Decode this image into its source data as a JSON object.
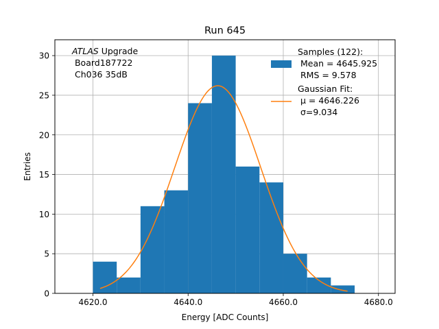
{
  "chart_data": {
    "type": "bar",
    "title": "Run 645",
    "xlabel": "Energy [ADC Counts]",
    "ylabel": "Entries",
    "xlim": [
      4612.0,
      4683.5
    ],
    "ylim": [
      0,
      32
    ],
    "grid": true,
    "x_ticks": [
      4620.0,
      4640.0,
      4660.0,
      4680.0
    ],
    "x_tick_labels": [
      "4620.0",
      "4640.0",
      "4660.0",
      "4680.0"
    ],
    "y_ticks": [
      0,
      5,
      10,
      15,
      20,
      25,
      30
    ],
    "y_tick_labels": [
      "0",
      "5",
      "10",
      "15",
      "20",
      "25",
      "30"
    ],
    "histogram": {
      "bin_edges": [
        4620,
        4625,
        4630,
        4635,
        4640,
        4645,
        4650,
        4655,
        4660,
        4665,
        4670,
        4675
      ],
      "counts": [
        4,
        2,
        11,
        13,
        24,
        30,
        16,
        14,
        5,
        2,
        1
      ],
      "color": "#1f77b4"
    },
    "fit": {
      "mu": 4646.226,
      "sigma": 9.034,
      "peak": 26.2,
      "x_range": [
        4621.5,
        4673.5
      ],
      "color": "#ff7f0e"
    },
    "annotation_lines": [
      "ATLAS Upgrade",
      " Board187722",
      " Ch036 35dB"
    ],
    "legend_position": "top-right",
    "legend": [
      {
        "lines": [
          "Samples (122):",
          " Mean = 4645.925",
          " RMS = 9.578"
        ],
        "marker": "patch",
        "color": "#1f77b4"
      },
      {
        "lines": [
          "Gaussian Fit:",
          " μ = 4646.226",
          " σ=9.034"
        ],
        "marker": "line",
        "color": "#ff7f0e"
      }
    ]
  }
}
